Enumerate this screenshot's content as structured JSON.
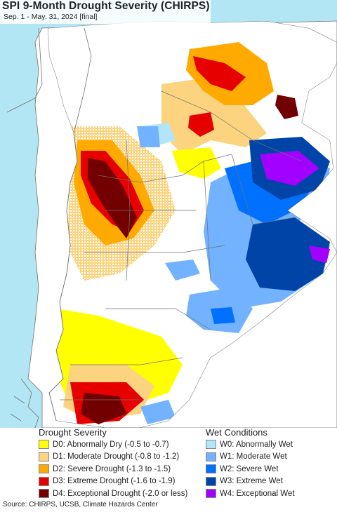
{
  "header": {
    "title": "SPI 9-Month Drought Severity (CHIRPS)",
    "subtitle": "Sep. 1 - May. 31, 2024 [final]"
  },
  "colors": {
    "ocean": "#b3e6f5",
    "land_outside": "#ffffff",
    "border": "#707070",
    "D0": "#ffff00",
    "D1": "#fcd37f",
    "D2": "#ffaa00",
    "D3": "#e60000",
    "D4": "#730000",
    "W0": "#b3e5fa",
    "W1": "#73b2ff",
    "W2": "#0070ff",
    "W3": "#0044a8",
    "W4": "#a200ff"
  },
  "legend": {
    "drought_heading": "Drought Severity",
    "wet_heading": "Wet Conditions",
    "drought": [
      {
        "code": "D0",
        "label": "D0: Abnormally Dry (-0.5 to -0.7)"
      },
      {
        "code": "D1",
        "label": "D1: Moderate Drought (-0.8 to -1.2)"
      },
      {
        "code": "D2",
        "label": "D2: Severe Drought (-1.3 to -1.5)"
      },
      {
        "code": "D3",
        "label": "D3: Extreme Drought (-1.6 to -1.9)"
      },
      {
        "code": "D4",
        "label": "D4: Exceptional Drought (-2.0 or less)"
      }
    ],
    "wet": [
      {
        "code": "W0",
        "label": "W0: Abnormally Wet"
      },
      {
        "code": "W1",
        "label": "W1: Moderate Wet"
      },
      {
        "code": "W2",
        "label": "W2: Severe Wet"
      },
      {
        "code": "W3",
        "label": "W3: Extreme Wet"
      },
      {
        "code": "W4",
        "label": "W4: Exceptional Wet"
      }
    ]
  },
  "footer": {
    "source": "Source: CHIRPS, UCSB, Climate Hazards Center"
  }
}
